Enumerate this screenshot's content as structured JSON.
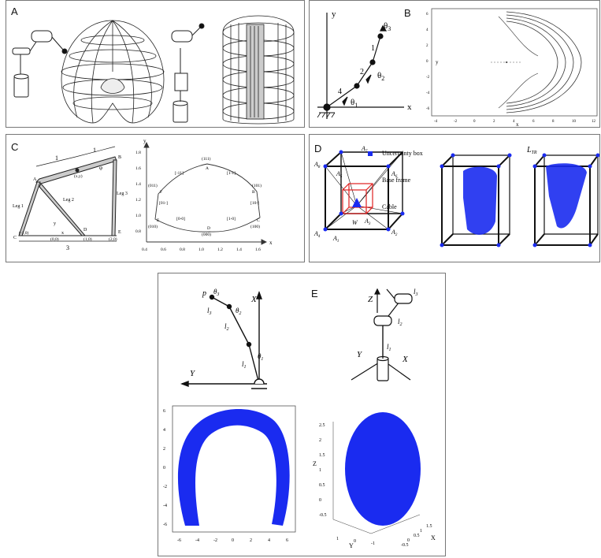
{
  "panels": {
    "a": {
      "label": "A"
    },
    "b": {
      "label": "B",
      "axis_x": "x",
      "axis_y": "y",
      "xticks": [
        "-4",
        "-2",
        "0",
        "2",
        "4",
        "6",
        "8",
        "10",
        "12"
      ],
      "yticks": [
        "6",
        "4",
        "2",
        "0",
        "-2",
        "-4",
        "-6"
      ],
      "diagram": {
        "theta1": "θ",
        "theta1_sub": "1",
        "theta2": "θ",
        "theta2_sub": "2",
        "theta3": "θ",
        "theta3_sub": "3",
        "n1": "1",
        "n2": "2",
        "n3": "3",
        "n4": "4",
        "x": "x",
        "y": "y"
      }
    },
    "c": {
      "label": "C",
      "dim1": "1",
      "dim2": "1",
      "dim3": "3",
      "leg1": "Leg 1",
      "leg2": "Leg 2",
      "leg3": "Leg 3",
      "pt_a": "A",
      "pt_b": "B",
      "pt_c": "C",
      "pt_d": "D",
      "pt_e": "E",
      "c_coord": "(-1,0)",
      "o_coord": "(0,0)",
      "d_coord": "(1,0)",
      "e_coord": "(2,0)",
      "p_coord": "(x,y)",
      "phi": "φ",
      "y_axis": "y",
      "x_axis": "x",
      "x_small": "x",
      "y_small": "y",
      "plot_xticks": [
        "0.4",
        "0.6",
        "0.8",
        "1.0",
        "1.2",
        "1.4",
        "1.6"
      ],
      "plot_yticks": [
        "1.8",
        "1.6",
        "1.4",
        "1.2",
        "1.0",
        "0.8"
      ],
      "plot_labels": {
        "a": "A",
        "b": "B",
        "c": "C",
        "d": "D",
        "e": "E",
        "f": "F",
        "l111": "(111)",
        "m11": "[-11]",
        "p1m1": "[1-1]",
        "l011": "(011)",
        "l101": "(101)",
        "l01m": "[01-]",
        "l10m": "[10-]",
        "l010": "(010)",
        "l100": "(100)",
        "l0m0": "[0-0]",
        "l1m0": "[1-0]",
        "l000": "(000)"
      }
    },
    "d": {
      "label": "D",
      "uncertainty": "Uncertainty box",
      "base_frame": "Base frame",
      "cable": "Cable",
      "w": "W",
      "a_labels": [
        "A",
        "A",
        "A",
        "A",
        "A",
        "A",
        "A",
        "A"
      ],
      "a_subs": [
        "1",
        "2",
        "3",
        "4",
        "5",
        "6",
        "7",
        "8"
      ],
      "l_sym": "L",
      "l_sub": "TR"
    },
    "e": {
      "label": "E",
      "x_axis": "X",
      "y_axis": "Y",
      "z_axis": "Z",
      "p": "p",
      "theta": "θ",
      "subs": [
        "1",
        "2",
        "3"
      ],
      "l": "l",
      "plot1_xticks": [
        "-6",
        "-4",
        "-2",
        "0",
        "2",
        "4",
        "6"
      ],
      "plot1_yticks": [
        "6",
        "4",
        "2",
        "0",
        "-2",
        "-4",
        "-6"
      ],
      "plot2_zticks": [
        "2.5",
        "2",
        "1.5",
        "1",
        "0.5",
        "0",
        "-0.5"
      ],
      "plot2_z": "Z",
      "plot2_y": "Y",
      "plot2_x": "X",
      "plot2_xticks": [
        "1.5",
        "1",
        "0.5",
        "0",
        "-0.5"
      ],
      "plot2_yticks": [
        "1",
        "0",
        "-1"
      ]
    }
  },
  "colors": {
    "points": "#1a2bf0",
    "frame": "#111111",
    "red_box": "#e02020"
  }
}
